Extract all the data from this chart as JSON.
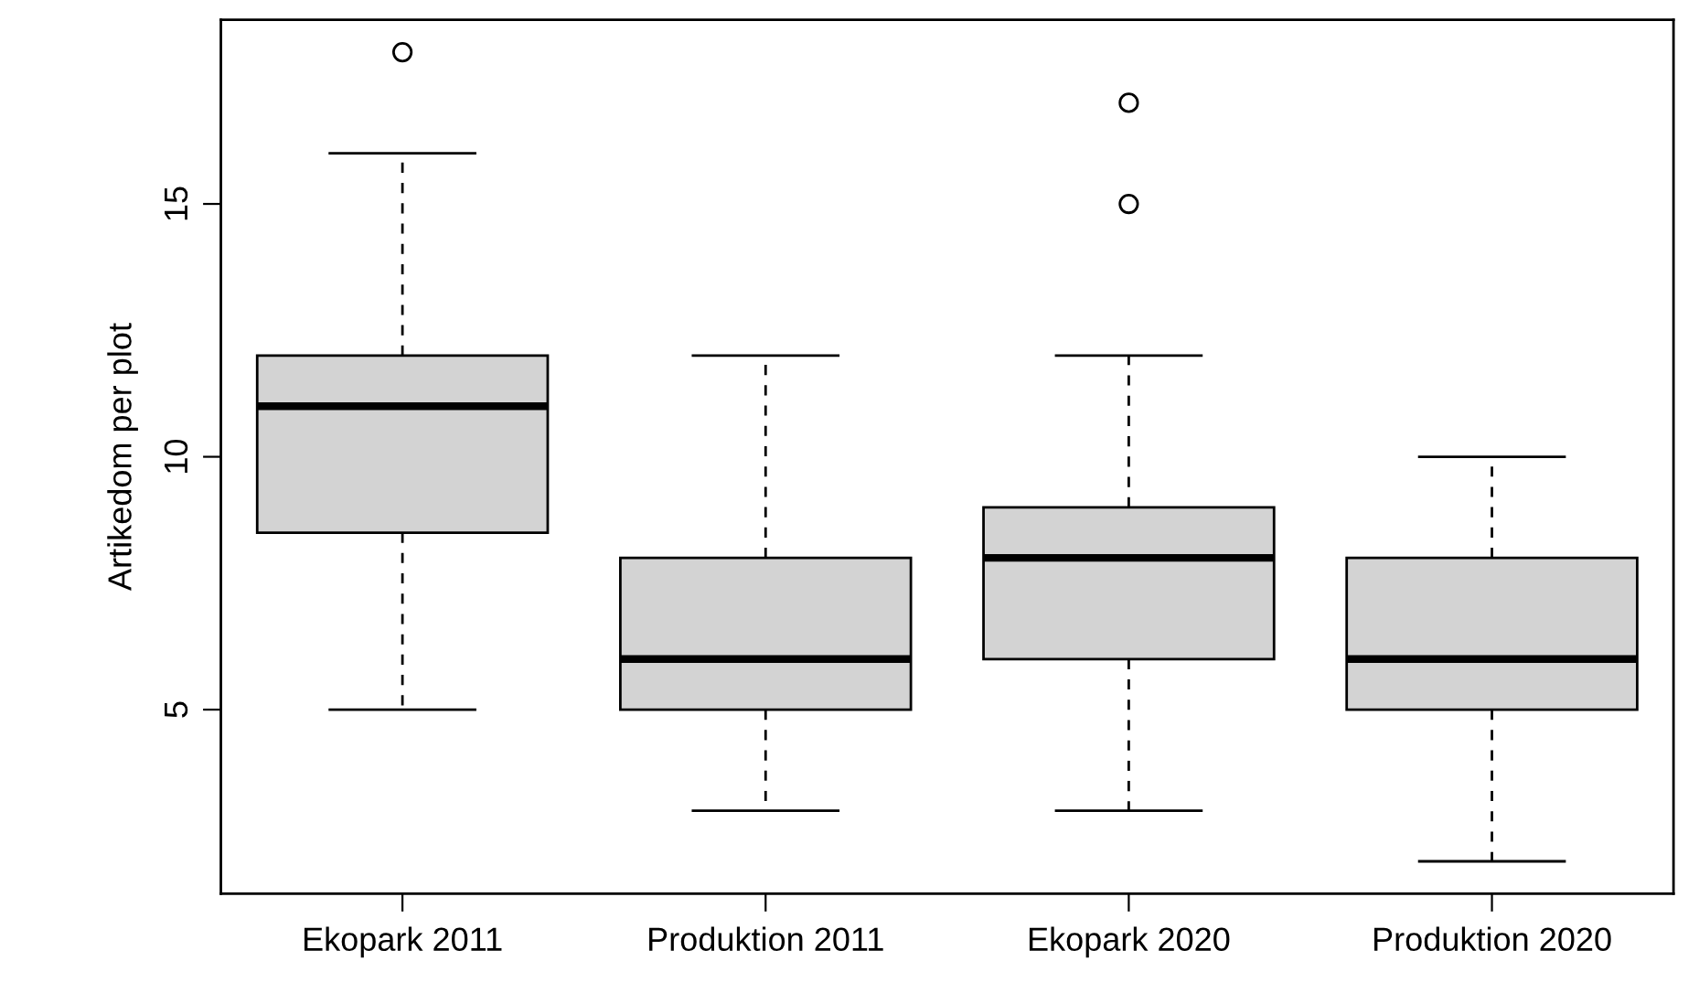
{
  "chart_data": {
    "type": "box",
    "ylabel": "Artikedom per plot",
    "categories": [
      "Ekopark 2011",
      "Produktion 2011",
      "Ekopark 2020",
      "Produktion 2020"
    ],
    "color": "#d3d3d3",
    "boxes": [
      {
        "low": 5,
        "q1": 8.5,
        "median": 11,
        "q3": 12,
        "high": 16,
        "outliers": [
          18
        ]
      },
      {
        "low": 3,
        "q1": 5,
        "median": 6,
        "q3": 8,
        "high": 12
      },
      {
        "low": 3,
        "q1": 6,
        "median": 8,
        "q3": 9,
        "high": 12,
        "outliers": [
          15,
          17
        ]
      },
      {
        "low": 2,
        "q1": 5,
        "median": 6,
        "q3": 8,
        "high": 10
      }
    ],
    "ylim": [
      1.36,
      18.64
    ],
    "yticks": [
      5,
      10,
      15
    ],
    "grid": false
  }
}
